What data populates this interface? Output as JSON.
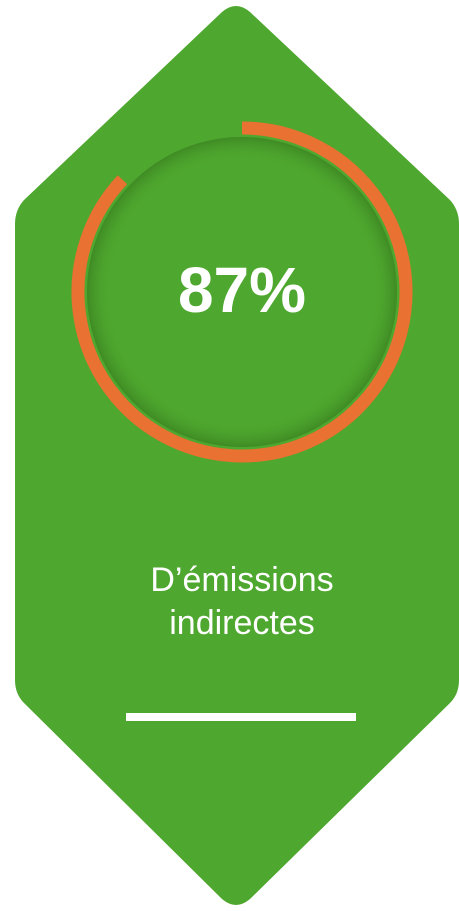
{
  "chart_data": {
    "type": "gauge",
    "values": [
      87
    ],
    "value_labels": [
      "87%"
    ],
    "ylim": [
      0,
      100
    ],
    "color": "#e97132",
    "caption": [
      "D’émissions",
      "indirectes"
    ]
  }
}
